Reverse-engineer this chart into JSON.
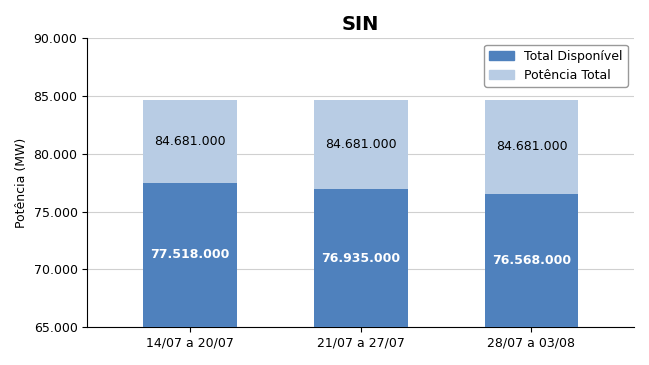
{
  "title": "SIN",
  "categories": [
    "14/07 a 20/07",
    "21/07 a 27/07",
    "28/07 a 03/08"
  ],
  "total_disponivel": [
    77518,
    76935,
    76568
  ],
  "potencia_total": [
    84681,
    84681,
    84681
  ],
  "bar_color_disponivel": "#4F81BD",
  "bar_color_potencia": "#B8CCE4",
  "ylabel": "Potência (MW)",
  "ylim_min": 65000,
  "ylim_max": 90000,
  "yticks": [
    65000,
    70000,
    75000,
    80000,
    85000,
    90000
  ],
  "ytick_labels": [
    "65.000",
    "70.000",
    "75.000",
    "80.000",
    "85.000",
    "90.000"
  ],
  "legend_label_1": "Total Disponível",
  "legend_label_2": "Potência Total",
  "bar_width": 0.55,
  "label_color_disponivel": "white",
  "label_color_potencia": "black",
  "title_fontsize": 14,
  "axis_fontsize": 9,
  "tick_fontsize": 9,
  "label_fontsize": 9,
  "background_color": "#FFFFFF",
  "grid_color": "#D0D0D0"
}
